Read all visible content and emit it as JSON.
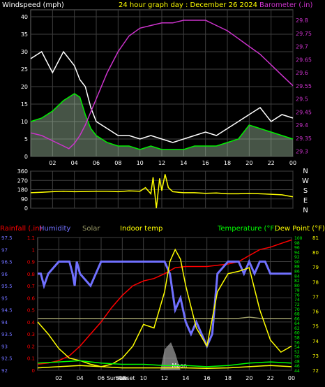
{
  "chart_data": [
    {
      "type": "line",
      "title": "24 hour graph day : December 26 2024",
      "ylabel": "Windspeed (mph)",
      "y2label": "Barometer (.in)",
      "x_ticks": [
        "02",
        "04",
        "06",
        "08",
        "10",
        "12",
        "14",
        "16",
        "18",
        "20",
        "22",
        "00"
      ],
      "ylim": [
        0,
        42
      ],
      "y_ticks": [
        0,
        5,
        10,
        15,
        20,
        25,
        30,
        35,
        40
      ],
      "y2lim": [
        29.28,
        29.84
      ],
      "y2_ticks": [
        "29.3",
        "29.35",
        "29.4",
        "29.45",
        "29.5",
        "29.55",
        "29.6",
        "29.65",
        "29.7",
        "29.75",
        "29.8"
      ],
      "grid": true,
      "series": [
        {
          "name": "Windspeed (mph)",
          "kind": "gust",
          "x": [
            0,
            1,
            2,
            3,
            4,
            4.5,
            5,
            5.5,
            6,
            7,
            8,
            9,
            10,
            11,
            12,
            13,
            14,
            15,
            16,
            17,
            18,
            19,
            20,
            21,
            22,
            23,
            24
          ],
          "values": [
            28,
            30,
            24,
            30,
            26,
            22,
            20,
            14,
            10,
            8,
            6,
            6,
            5,
            6,
            5,
            4,
            5,
            6,
            7,
            6,
            8,
            10,
            12,
            14,
            10,
            12,
            11
          ]
        },
        {
          "name": "avg",
          "kind": "avg",
          "x": [
            0,
            1,
            2,
            3,
            4,
            4.5,
            5,
            5.5,
            6,
            7,
            8,
            9,
            10,
            11,
            12,
            13,
            14,
            15,
            16,
            17,
            18,
            19,
            20,
            21,
            22,
            23,
            24
          ],
          "values": [
            10,
            11,
            13,
            16,
            18,
            17,
            12,
            8,
            6,
            4,
            3,
            3,
            2,
            3,
            2,
            2,
            2,
            3,
            3,
            3,
            4,
            5,
            9,
            8,
            7,
            6,
            5
          ]
        },
        {
          "name": "Barometer (.in)",
          "axis": "y2",
          "x": [
            0,
            1,
            2,
            3,
            3.5,
            4,
            4.5,
            5,
            6,
            7,
            8,
            9,
            10,
            11,
            12,
            13,
            14,
            15,
            16,
            17,
            18,
            19,
            20,
            21,
            22,
            23,
            24
          ],
          "values": [
            29.37,
            29.36,
            29.34,
            29.32,
            29.31,
            29.33,
            29.36,
            29.4,
            29.5,
            29.6,
            29.68,
            29.74,
            29.77,
            29.78,
            29.79,
            29.79,
            29.8,
            29.8,
            29.8,
            29.78,
            29.76,
            29.73,
            29.7,
            29.67,
            29.63,
            29.59,
            29.55
          ]
        }
      ]
    },
    {
      "type": "line",
      "title": "",
      "x_ticks": [
        "02",
        "04",
        "06",
        "08",
        "10",
        "12",
        "14",
        "16",
        "18",
        "20",
        "22",
        "00"
      ],
      "ylim": [
        0,
        360
      ],
      "y_ticks": [
        0,
        90,
        180,
        270,
        360
      ],
      "y_tick_labels": [
        "0",
        "90",
        "180",
        "270",
        "360"
      ],
      "compass": [
        "N",
        "W",
        "S",
        "E",
        "N"
      ],
      "grid": true,
      "series": [
        {
          "name": "Wind direction",
          "x": [
            0,
            1,
            2,
            3,
            4,
            5,
            6,
            7,
            8,
            9,
            10,
            10.5,
            11,
            11.2,
            11.5,
            11.8,
            12,
            12.3,
            12.6,
            13,
            13.5,
            14,
            15,
            16,
            17,
            18,
            19,
            20,
            21,
            22,
            23,
            24
          ],
          "values": [
            150,
            155,
            160,
            165,
            160,
            162,
            165,
            165,
            160,
            168,
            165,
            200,
            140,
            300,
            0,
            290,
            170,
            330,
            200,
            160,
            155,
            150,
            150,
            145,
            148,
            140,
            140,
            145,
            140,
            135,
            130,
            110
          ]
        }
      ]
    },
    {
      "type": "line",
      "title": "",
      "legend_left": [
        "Rainfall (.in)",
        "Humidity",
        "Solar",
        "Indoor temp"
      ],
      "legend_right": [
        "Temperature (°F)",
        "Dew Point (°F)"
      ],
      "x_ticks": [
        "02",
        "04",
        "06",
        "08",
        "10",
        "12",
        "14",
        "16",
        "18",
        "20",
        "22",
        "00"
      ],
      "annotations": [
        "Sunrise",
        "Sunset",
        "Moon"
      ],
      "axis_rain": [
        "0",
        "0.1",
        "0.2",
        "0.3",
        "0.4",
        "0.5",
        "0.6",
        "0.7",
        "0.8",
        "0.9",
        "1",
        "1.1"
      ],
      "axis_humidity": [
        "92",
        "92.5",
        "93",
        "93.5",
        "94",
        "94.5",
        "95",
        "95.5",
        "96",
        "96.5",
        "97",
        "97.5"
      ],
      "axis_temp": [
        "44",
        "46",
        "48",
        "50",
        "52",
        "54",
        "56",
        "58",
        "60",
        "62",
        "64",
        "66",
        "68",
        "70",
        "72",
        "74",
        "76",
        "78",
        "80",
        "82",
        "84",
        "86",
        "88",
        "90",
        "92",
        "94",
        "96",
        "98",
        "100"
      ],
      "axis_dew": [
        "72",
        "73",
        "74",
        "75",
        "76",
        "77",
        "78",
        "79",
        "80",
        "81"
      ],
      "grid": true,
      "series": [
        {
          "name": "Rainfall (.in)",
          "scale": [
            0,
            1.1
          ],
          "x": [
            0,
            1,
            2,
            3,
            4,
            5,
            6,
            7,
            8,
            9,
            10,
            11,
            12,
            13,
            14,
            15,
            16,
            17,
            18,
            19,
            20,
            21,
            22,
            23,
            24
          ],
          "values": [
            0.05,
            0.06,
            0.08,
            0.12,
            0.2,
            0.3,
            0.4,
            0.52,
            0.62,
            0.7,
            0.74,
            0.76,
            0.8,
            0.85,
            0.86,
            0.86,
            0.86,
            0.87,
            0.88,
            0.9,
            0.95,
            1.0,
            1.02,
            1.05,
            1.08
          ]
        },
        {
          "name": "Humidity",
          "scale": [
            92,
            97.5
          ],
          "x": [
            0,
            0.3,
            0.6,
            1,
            2,
            3,
            3.3,
            3.5,
            3.7,
            4,
            5,
            5.5,
            6,
            7,
            8,
            9,
            10,
            11,
            12,
            12.5,
            13,
            13.5,
            14,
            14.5,
            15,
            15.5,
            16,
            16.5,
            17,
            18,
            19,
            19.5,
            20,
            20.5,
            21,
            21.5,
            22,
            22.5,
            23,
            24
          ],
          "values": [
            96,
            96,
            95.5,
            96,
            96.5,
            96.5,
            96,
            95.5,
            96.5,
            96,
            95.5,
            96,
            96.5,
            96.5,
            96.5,
            96.5,
            96.5,
            96.5,
            96.5,
            96,
            94.5,
            95,
            94,
            93.5,
            94,
            93.5,
            93,
            93.5,
            96,
            96.5,
            96.5,
            96,
            96.5,
            96,
            96.5,
            96.5,
            96,
            96,
            96,
            96
          ]
        },
        {
          "name": "Solar",
          "scale": [
            0,
            1.1
          ],
          "x": [
            0,
            6,
            7,
            8,
            9,
            10,
            11,
            12,
            12.3,
            12.6,
            13,
            13.5,
            14,
            15,
            16,
            17,
            18,
            19,
            20,
            21,
            22,
            23,
            24
          ],
          "values": [
            0.43,
            0.43,
            0.43,
            0.43,
            0.43,
            0.43,
            0.43,
            0.43,
            0.43,
            0.43,
            0.43,
            0.43,
            0.43,
            0.43,
            0.43,
            0.43,
            0.43,
            0.43,
            0.44,
            0.43,
            0.43,
            0.43,
            0.43
          ]
        },
        {
          "name": "Indoor temp",
          "scale": [
            0,
            1.1
          ],
          "x": [
            0,
            1,
            2,
            3,
            4,
            5,
            6,
            7,
            8,
            9,
            10,
            11,
            12,
            12.5,
            13,
            13.5,
            14,
            15,
            16,
            17,
            18,
            19,
            20,
            21,
            22,
            23,
            24
          ],
          "values": [
            0.4,
            0.3,
            0.18,
            0.1,
            0.08,
            0.05,
            0.03,
            0.05,
            0.1,
            0.2,
            0.38,
            0.35,
            0.65,
            0.9,
            1.0,
            0.92,
            0.7,
            0.35,
            0.2,
            0.65,
            0.8,
            0.82,
            0.85,
            0.5,
            0.25,
            0.15,
            0.2
          ]
        },
        {
          "name": "Temperature (°F)",
          "scale": [
            44,
            100
          ],
          "x": [
            0,
            2,
            4,
            6,
            8,
            10,
            12,
            13,
            14,
            16,
            18,
            20,
            22,
            24
          ],
          "values": [
            47,
            47.5,
            48,
            47,
            46.5,
            46.5,
            46,
            46,
            46,
            45.5,
            46,
            47,
            47.5,
            47
          ]
        },
        {
          "name": "Dew Point (°F)",
          "scale": [
            44,
            100
          ],
          "x": [
            0,
            2,
            4,
            6,
            8,
            10,
            12,
            13,
            14,
            16,
            18,
            20,
            22,
            24
          ],
          "values": [
            45,
            45.5,
            46,
            45.5,
            45,
            45,
            45,
            45,
            45,
            44.8,
            45,
            45.5,
            46,
            45.5
          ]
        }
      ]
    }
  ],
  "colors": {
    "background": "#000000",
    "plot_bg": "#000000",
    "grid": "#3f3f3f",
    "wind_gust": "#ffffff",
    "wind_avg": "#00ee00",
    "wind_fill": "#c8f0c8",
    "barometer": "#cc33cc",
    "wind_dir": "#ffff00",
    "rain": "#ff0000",
    "humidity": "#7070ff",
    "solar": "#999966",
    "indoor": "#ffff00",
    "temperature": "#00ff00",
    "dewpoint": "#ffff00",
    "moon": "#bbbbbb"
  }
}
